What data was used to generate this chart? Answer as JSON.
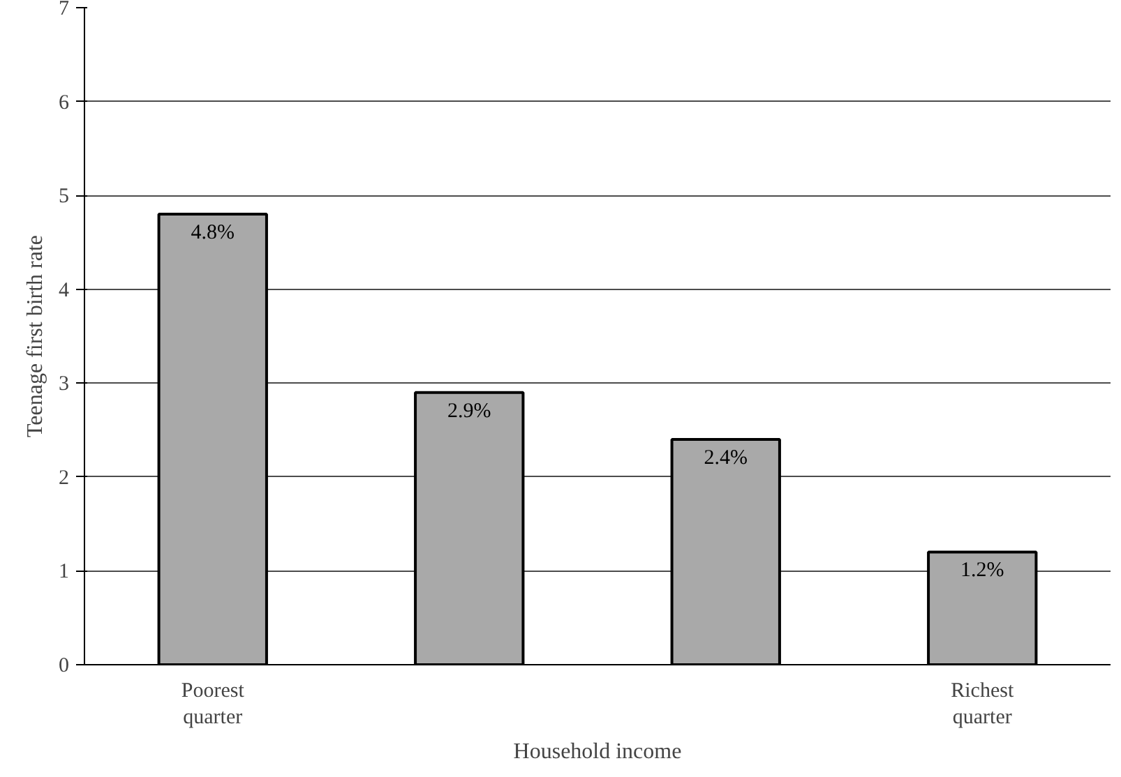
{
  "chart_data": {
    "type": "bar",
    "xlabel": "Household income",
    "ylabel": "Teenage first birth rate",
    "categories": [
      "Poorest\nquarter",
      null,
      null,
      "Richest\nquarter"
    ],
    "values": [
      4.8,
      2.9,
      2.4,
      1.2
    ],
    "value_labels": [
      "4.8%",
      "2.9%",
      "2.4%",
      "1.2%"
    ],
    "color": "#a9a9a9",
    "ylim": [
      0,
      7
    ],
    "yticks": [
      0,
      1,
      2,
      3,
      4,
      5,
      6,
      7
    ],
    "grid": "y"
  }
}
